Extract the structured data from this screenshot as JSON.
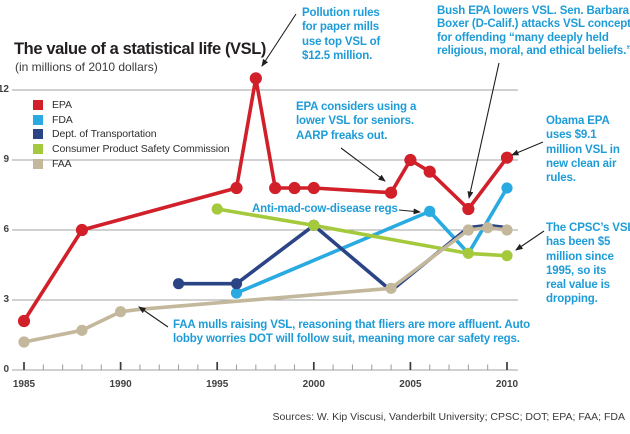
{
  "header": {
    "title": "The value of a statistical life (VSL)",
    "subtitle": "(in millions of 2010 dollars)"
  },
  "footer": {
    "sources": "Sources: W. Kip Viscusi, Vanderbilt University; CPSC; DOT; EPA; FAA; FDA"
  },
  "colors": {
    "epa": "#d1202a",
    "fda": "#29aae1",
    "dot": "#2a4486",
    "cpsc": "#a5c93c",
    "faa": "#c4b89c",
    "annotation_text": "#1e9cd8",
    "grid": "#a3a3a3",
    "tick_major": "#3a3a3a",
    "tick_minor": "#9a9a9a",
    "arrow": "#231f20"
  },
  "legend": [
    {
      "id": "epa",
      "label": "EPA"
    },
    {
      "id": "fda",
      "label": "FDA"
    },
    {
      "id": "dot",
      "label": "Dept. of Transportation"
    },
    {
      "id": "cpsc",
      "label": "Consumer Product Safety Commission"
    },
    {
      "id": "faa",
      "label": "FAA"
    }
  ],
  "chart_data": {
    "type": "line",
    "title": "The value of a statistical life (VSL)",
    "subtitle": "(in millions of 2010 dollars)",
    "ylabel": "millions of 2010 dollars",
    "x_axis": {
      "range": [
        1985,
        2010
      ],
      "ticks_major": [
        1985,
        1990,
        1995,
        2000,
        2005,
        2010
      ],
      "minor_tick_every": 1
    },
    "y_axis": {
      "range": [
        0,
        13
      ],
      "ticks": [
        0,
        3,
        6,
        9,
        12
      ],
      "gridlines": true
    },
    "series": [
      {
        "id": "epa",
        "name": "EPA",
        "points": [
          [
            1985,
            2.1
          ],
          [
            1988,
            6.0
          ],
          [
            1996,
            7.8
          ],
          [
            1997,
            12.5
          ],
          [
            1998,
            7.8
          ],
          [
            1999,
            7.8
          ],
          [
            2000,
            7.8
          ],
          [
            2004,
            7.6
          ],
          [
            2005,
            9.0
          ],
          [
            2006,
            8.5
          ],
          [
            2008,
            6.9
          ],
          [
            2010,
            9.1
          ]
        ],
        "dot_years": [
          1985,
          1988,
          1996,
          1997,
          1998,
          1999,
          2000,
          2004,
          2005,
          2006,
          2008,
          2010
        ]
      },
      {
        "id": "fda",
        "name": "FDA",
        "points": [
          [
            1996,
            3.3
          ],
          [
            2006,
            6.8
          ],
          [
            2008,
            5.0
          ],
          [
            2010,
            7.8
          ]
        ],
        "dot_years": [
          1996,
          2006,
          2010
        ]
      },
      {
        "id": "dot",
        "name": "Dept. of Transportation",
        "points": [
          [
            1993,
            3.7
          ],
          [
            1996,
            3.7
          ],
          [
            2000,
            6.2
          ],
          [
            2004,
            3.4
          ],
          [
            2008,
            6.1
          ],
          [
            2009,
            6.2
          ],
          [
            2010,
            6.1
          ]
        ],
        "dot_years": [
          1993,
          1996,
          2000
        ]
      },
      {
        "id": "cpsc",
        "name": "Consumer Product Safety Commission",
        "points": [
          [
            1995,
            6.9
          ],
          [
            2000,
            6.2
          ],
          [
            2008,
            5.0
          ],
          [
            2010,
            4.9
          ]
        ],
        "dot_years": [
          1995,
          2000,
          2008,
          2010
        ]
      },
      {
        "id": "faa",
        "name": "FAA",
        "points": [
          [
            1985,
            1.2
          ],
          [
            1988,
            1.7
          ],
          [
            1990,
            2.5
          ],
          [
            1991,
            2.6
          ],
          [
            2004,
            3.5
          ],
          [
            2008,
            6.0
          ],
          [
            2009,
            6.1
          ],
          [
            2010,
            6.0
          ]
        ],
        "dot_years": [
          1985,
          1988,
          1990,
          2004,
          2008,
          2009,
          2010
        ]
      }
    ],
    "annotations": [
      {
        "id": "pollution",
        "lines": [
          "Pollution rules",
          "for paper mills",
          "use top VSL of",
          "$12.5 million."
        ]
      },
      {
        "id": "bush",
        "lines": [
          "Bush EPA lowers VSL. Sen. Barbara",
          "Boxer (D-Calif.) attacks VSL concept",
          "for offending “many deeply held",
          "religious, moral, and ethical beliefs.”"
        ]
      },
      {
        "id": "seniors",
        "lines": [
          "EPA considers using a",
          "lower VSL for seniors.",
          "AARP freaks out."
        ]
      },
      {
        "id": "obama",
        "lines": [
          "Obama EPA",
          "uses $9.1",
          "million VSL in",
          "new clean air",
          "rules."
        ]
      },
      {
        "id": "madcow",
        "lines": [
          "Anti-mad-cow-disease regs"
        ]
      },
      {
        "id": "cpsc-note",
        "lines": [
          "The CPSC’s VSL",
          "has been $5",
          "million since",
          "1995, so its",
          "real value is",
          "dropping."
        ]
      },
      {
        "id": "faa-note",
        "lines": [
          "FAA mulls raising VSL, reasoning that fliers are more affluent. Auto",
          "lobby worries DOT will follow suit, meaning more car safety regs."
        ]
      }
    ]
  }
}
